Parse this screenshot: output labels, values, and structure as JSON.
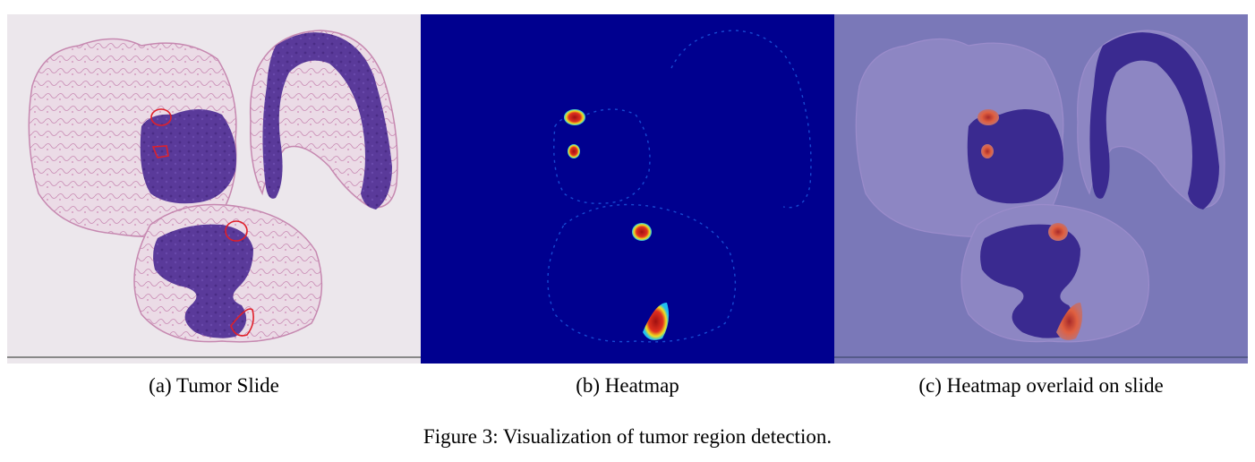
{
  "panels": [
    {
      "caption": "(a) Tumor Slide"
    },
    {
      "caption": "(b) Heatmap"
    },
    {
      "caption": "(c) Heatmap overlaid on slide"
    }
  ],
  "figure": {
    "caption": "Figure 3: Visualization of tumor region detection."
  },
  "colors": {
    "slide_background": "#ece7ec",
    "tissue_purple": "#5b3a98",
    "connective_pink": "#d9a8c9",
    "tumor_outline": "#e0202a",
    "heatmap_background": "#00008f",
    "heatmap_hot": "#b01010",
    "overlay_background": "#7a78b8"
  }
}
